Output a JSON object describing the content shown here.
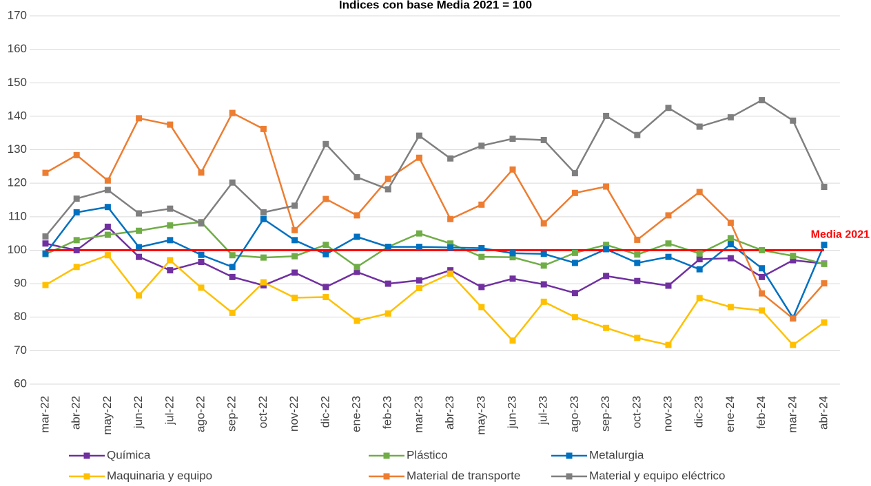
{
  "chart_data": {
    "type": "line",
    "title": "Índices con base Media 2021 = 100",
    "categories": [
      "mar-22",
      "abr-22",
      "may-22",
      "jun-22",
      "jul-22",
      "ago-22",
      "sep-22",
      "oct-22",
      "nov-22",
      "dic-22",
      "ene-23",
      "feb-23",
      "mar-23",
      "abr-23",
      "may-23",
      "jun-23",
      "jul-23",
      "ago-23",
      "sep-23",
      "oct-23",
      "nov-23",
      "dic-23",
      "ene-24",
      "feb-24",
      "mar-24",
      "abr-24"
    ],
    "series": [
      {
        "name": "Química",
        "color": "#7030a0",
        "values": [
          102,
          100,
          107,
          98,
          94,
          96.5,
          92,
          89.5,
          93.3,
          89,
          93.5,
          90,
          91,
          94,
          89,
          91.5,
          89.8,
          87.2,
          92.3,
          90.8,
          89.4,
          97.3,
          97.6,
          92,
          97,
          96
        ]
      },
      {
        "name": "Plástico",
        "color": "#70ad47",
        "values": [
          98.8,
          103,
          104.6,
          105.8,
          107.4,
          108.4,
          98.5,
          97.8,
          98.2,
          101.6,
          95,
          101,
          105,
          102,
          98,
          97.9,
          95.4,
          99.2,
          101.6,
          98.7,
          102,
          99,
          103.6,
          100,
          98.3,
          95.9
        ]
      },
      {
        "name": "Metalurgia",
        "color": "#0070c0",
        "values": [
          99,
          111.3,
          112.9,
          100.9,
          103,
          98.6,
          95,
          109.3,
          103,
          98.8,
          104,
          101,
          101,
          100.8,
          100.6,
          99.1,
          98.9,
          96.2,
          100.3,
          96.2,
          98,
          94.3,
          101.8,
          94.6,
          79.8,
          101.6
        ]
      },
      {
        "name": "Maquinaria y equipo",
        "color": "#ffc000",
        "values": [
          89.6,
          95,
          98.5,
          86.5,
          97,
          88.8,
          81.3,
          90.4,
          85.8,
          86,
          78.9,
          81.1,
          88.7,
          93,
          83,
          73,
          84.6,
          80,
          76.8,
          73.8,
          71.7,
          85.7,
          83,
          82,
          71.7,
          78.4
        ]
      },
      {
        "name": "Material de transporte",
        "color": "#ed7d31",
        "values": [
          123.1,
          128.4,
          120.8,
          139.4,
          137.5,
          123.2,
          141,
          136.2,
          106,
          115.3,
          110.4,
          121.3,
          127.6,
          109.3,
          113.6,
          124.1,
          108,
          117.1,
          119,
          103.1,
          110.4,
          117.4,
          108.2,
          87.1,
          79.6,
          90.1
        ]
      },
      {
        "name": "Material y equipo eléctrico",
        "color": "#7f7f7f",
        "values": [
          104.1,
          115.4,
          118,
          111,
          112.4,
          108,
          120.2,
          111.3,
          113.3,
          131.7,
          121.8,
          118.2,
          134.2,
          127.4,
          131.2,
          133.3,
          132.9,
          123,
          140.1,
          134.4,
          142.5,
          136.9,
          139.7,
          144.8,
          138.7,
          118.9
        ]
      }
    ],
    "reference_line": {
      "value": 100,
      "label": "Media 2021",
      "color": "#ff0000"
    },
    "ylim": [
      60,
      170
    ],
    "yticks": [
      60,
      70,
      80,
      90,
      100,
      110,
      120,
      130,
      140,
      150,
      160,
      170
    ],
    "grid": true
  }
}
